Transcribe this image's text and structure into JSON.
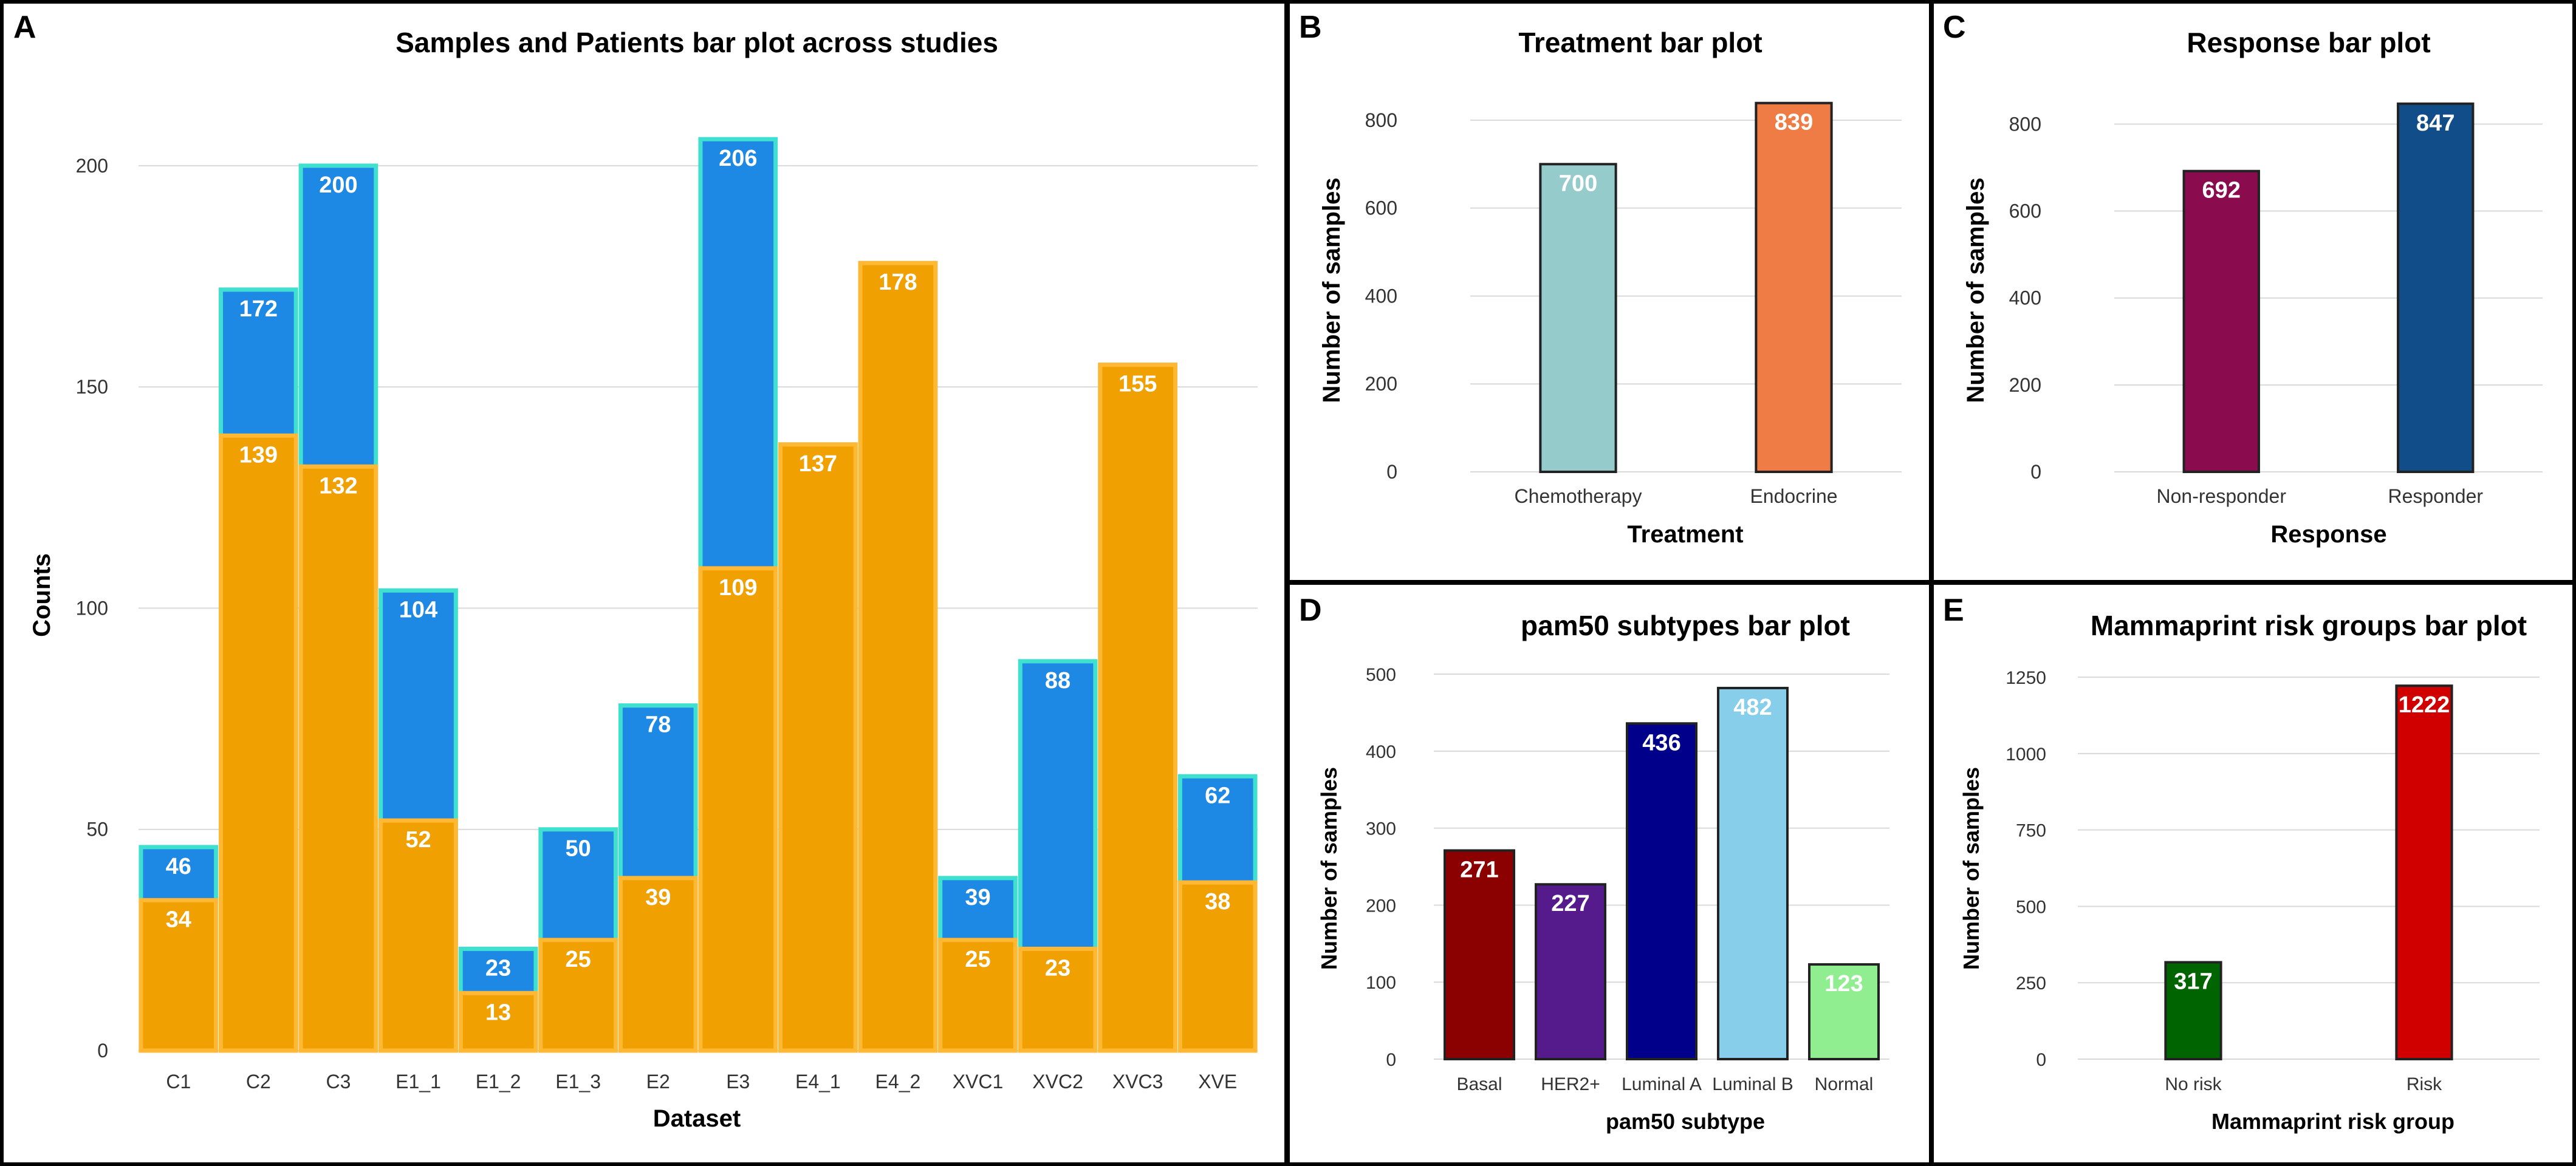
{
  "chart_data": [
    {
      "panel": "A",
      "type": "bar",
      "title": "Samples and Patients bar plot across studies",
      "xlabel": "Dataset",
      "ylabel": "Counts",
      "ylim": [
        0,
        210
      ],
      "yticks": [
        0,
        50,
        100,
        150,
        200
      ],
      "grid": true,
      "overlay": true,
      "categories": [
        "C1",
        "C2",
        "C3",
        "E1_1",
        "E1_2",
        "E1_3",
        "E2",
        "E3",
        "E4_1",
        "E4_2",
        "XVC1",
        "XVC2",
        "XVC3",
        "XVE"
      ],
      "series": [
        {
          "values": [
            46,
            172,
            200,
            104,
            23,
            50,
            78,
            206,
            137,
            178,
            39,
            88,
            155,
            62
          ],
          "color": "#1e88e5",
          "edge": "#40e0d0"
        },
        {
          "values": [
            34,
            139,
            132,
            52,
            13,
            25,
            39,
            109,
            137,
            178,
            25,
            23,
            155,
            38
          ],
          "color": "#f0a000",
          "edge": "#ffb833"
        }
      ]
    },
    {
      "panel": "B",
      "type": "bar",
      "title": "Treatment bar plot",
      "xlabel": "Treatment",
      "ylabel": "Number of samples",
      "ylim": [
        0,
        880
      ],
      "yticks": [
        0,
        200,
        400,
        600,
        800
      ],
      "grid": true,
      "categories": [
        "Chemotherapy",
        "Endocrine"
      ],
      "values": [
        700,
        839
      ],
      "colors": [
        "#96cbcc",
        "#ef7b45"
      ]
    },
    {
      "panel": "C",
      "type": "bar",
      "title": "Response bar plot",
      "xlabel": "Response",
      "ylabel": "Number of samples",
      "ylim": [
        0,
        890
      ],
      "yticks": [
        0,
        200,
        400,
        600,
        800
      ],
      "grid": true,
      "categories": [
        "Non-responder",
        "Responder"
      ],
      "values": [
        692,
        847
      ],
      "colors": [
        "#8b0b4f",
        "#114d89"
      ]
    },
    {
      "panel": "D",
      "type": "bar",
      "title": "pam50 subtypes bar plot",
      "xlabel": "pam50 subtype",
      "ylabel": "Number of samples",
      "ylim": [
        0,
        508
      ],
      "yticks": [
        0,
        100,
        200,
        300,
        400,
        500
      ],
      "grid": true,
      "categories": [
        "Basal",
        "HER2+",
        "Luminal A",
        "Luminal B",
        "Normal"
      ],
      "values": [
        271,
        227,
        436,
        482,
        123
      ],
      "colors": [
        "#8b0000",
        "#551a8b",
        "#00008b",
        "#87ceeb",
        "#90ee90"
      ]
    },
    {
      "panel": "E",
      "type": "bar",
      "title": "Mammaprint risk groups bar plot",
      "xlabel": "Mammaprint risk group",
      "ylabel": "Number of samples",
      "ylim": [
        0,
        1280
      ],
      "yticks": [
        0,
        250,
        500,
        750,
        1000,
        1250
      ],
      "grid": true,
      "categories": [
        "No risk",
        "Risk"
      ],
      "values": [
        317,
        1222
      ],
      "colors": [
        "#006400",
        "#d00000"
      ]
    }
  ]
}
